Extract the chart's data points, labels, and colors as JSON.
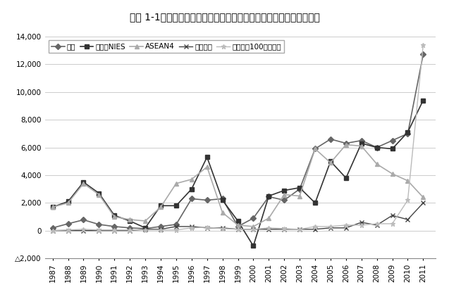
{
  "title": "図表 1-1　対外直接投賄の推移（国際収支ベース、ネット、フロー）",
  "years": [
    1987,
    1988,
    1989,
    1990,
    1991,
    1992,
    1993,
    1994,
    1995,
    1996,
    1997,
    1998,
    1999,
    2000,
    2001,
    2002,
    2003,
    2004,
    2005,
    2006,
    2007,
    2008,
    2009,
    2010,
    2011
  ],
  "china": [
    200,
    500,
    780,
    450,
    300,
    200,
    150,
    300,
    450,
    2300,
    2200,
    2300,
    300,
    900,
    2450,
    2200,
    3000,
    5900,
    6600,
    6300,
    6500,
    6000,
    6500,
    7000,
    12700
  ],
  "asia_nies": [
    1700,
    2100,
    3500,
    2700,
    1100,
    700,
    200,
    1800,
    1800,
    3000,
    5300,
    2200,
    700,
    -1100,
    2500,
    2900,
    3100,
    2000,
    5000,
    3800,
    6300,
    6000,
    5900,
    7100,
    9400
  ],
  "asean4": [
    1700,
    2000,
    3400,
    2600,
    1000,
    800,
    700,
    1700,
    3400,
    3700,
    4600,
    1300,
    400,
    300,
    900,
    2600,
    2500,
    5900,
    4900,
    6200,
    6100,
    4800,
    4100,
    3600,
    2400
  ],
  "vietnam": [
    10,
    10,
    10,
    10,
    10,
    10,
    100,
    100,
    300,
    300,
    200,
    200,
    100,
    100,
    100,
    100,
    100,
    100,
    200,
    200,
    600,
    400,
    1100,
    800,
    2000
  ],
  "india": [
    10,
    50,
    100,
    50,
    50,
    50,
    50,
    50,
    50,
    200,
    250,
    150,
    100,
    100,
    200,
    150,
    100,
    300,
    300,
    400,
    400,
    500,
    500,
    2200,
    13400
  ],
  "legend_labels": [
    "中国",
    "アジアNIES",
    "ASEAN4",
    "ベトナム",
    "インド（100万ドル）"
  ],
  "ylim": [
    -2000,
    14000
  ],
  "yticks": [
    -2000,
    0,
    2000,
    4000,
    6000,
    8000,
    10000,
    12000,
    14000
  ],
  "ytick_labels": [
    "△2,000",
    "0",
    "2,000",
    "4,000",
    "6,000",
    "8,000",
    "10,000",
    "12,000",
    "14,000"
  ],
  "colors": [
    "#666666",
    "#333333",
    "#aaaaaa",
    "#444444",
    "#bbbbbb"
  ],
  "markers": [
    "D",
    "s",
    "^",
    "x",
    "*"
  ],
  "marker_sizes": [
    4,
    4,
    4,
    5,
    5
  ],
  "linewidths": [
    1.2,
    1.2,
    1.2,
    1.0,
    1.0
  ],
  "bg_color": "#ffffff",
  "grid_color": "#cccccc",
  "title_fontsize": 10,
  "tick_fontsize": 7.5,
  "legend_fontsize": 7.5
}
